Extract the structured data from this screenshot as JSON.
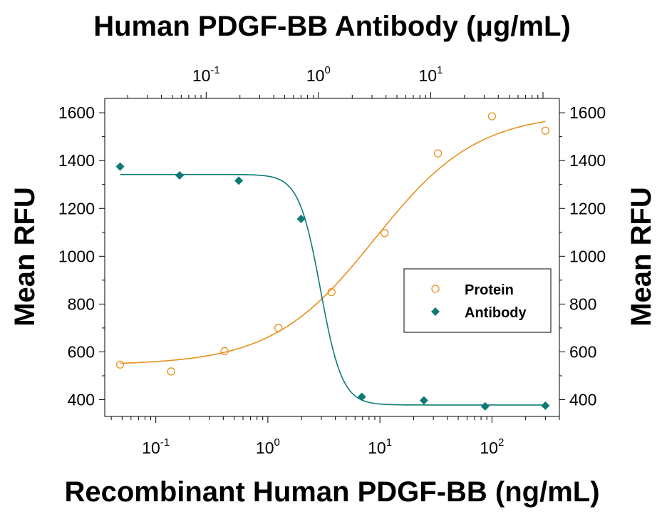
{
  "chart_data": {
    "type": "scatter",
    "title": "Human PDGF-BB Antibody (μg/mL)",
    "xlabel": "Recombinant Human PDGF-BB (ng/mL)",
    "ylabel": "Mean RFU",
    "ylabel_right": "Mean RFU",
    "x_scale": "log",
    "xlim": [
      0.035,
      400
    ],
    "ylim": [
      330,
      1660
    ],
    "y_ticks": [
      400,
      600,
      800,
      1000,
      1200,
      1400,
      1600
    ],
    "x_ticks": [
      {
        "value": 0.1,
        "base": "10",
        "exp": "-1"
      },
      {
        "value": 1,
        "base": "10",
        "exp": "0"
      },
      {
        "value": 10,
        "base": "10",
        "exp": "1"
      },
      {
        "value": 100,
        "base": "10",
        "exp": "2"
      }
    ],
    "x2_scale": "log",
    "x2lim": [
      0.0125,
      140
    ],
    "x2_ticks": [
      {
        "value": 0.1,
        "base": "10",
        "exp": "-1"
      },
      {
        "value": 1,
        "base": "10",
        "exp": "0"
      },
      {
        "value": 10,
        "base": "10",
        "exp": "1"
      }
    ],
    "legend_position": "center-right",
    "series": [
      {
        "name": "Protein",
        "marker": "circle-open",
        "color": "#E8901E",
        "x": [
          0.048,
          0.137,
          0.41,
          1.24,
          3.7,
          11,
          33,
          100,
          300
        ],
        "y": [
          547,
          518,
          603,
          700,
          850,
          1097,
          1430,
          1585,
          1525
        ],
        "fit": {
          "bottom": 545,
          "top": 1600,
          "ec50": 9.0,
          "hill": 0.95
        }
      },
      {
        "name": "Antibody",
        "marker": "diamond-filled",
        "color": "#0E7B74",
        "x": [
          0.048,
          0.163,
          0.55,
          1.98,
          6.9,
          24.7,
          87,
          300
        ],
        "y": [
          1375,
          1338,
          1316,
          1156,
          412,
          397,
          372,
          375
        ],
        "fit": {
          "bottom": 378,
          "top": 1342,
          "ec50": 2.95,
          "hill": 4.5
        }
      }
    ]
  }
}
